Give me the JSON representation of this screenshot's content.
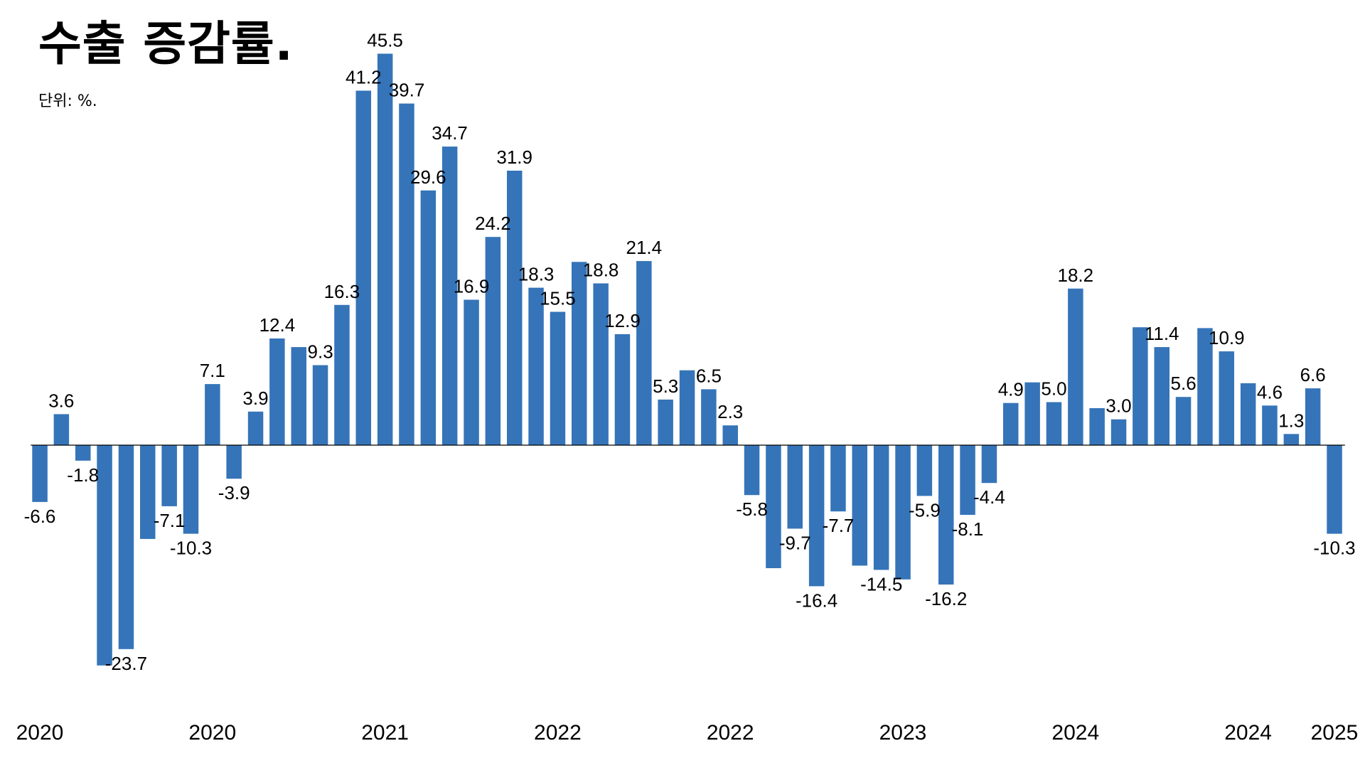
{
  "header": {
    "title": "수출 증감률.",
    "subtitle": "단위: %."
  },
  "chart_data": {
    "type": "bar",
    "title": "수출 증감률.",
    "unit": "단위: %.",
    "color": "#3574b8",
    "values": [
      -6.6,
      3.6,
      -1.8,
      -25.6,
      -23.7,
      -10.9,
      -7.1,
      -10.3,
      7.1,
      -3.9,
      3.9,
      12.4,
      11.4,
      9.3,
      16.3,
      41.2,
      45.5,
      39.7,
      29.6,
      34.7,
      16.9,
      24.2,
      31.9,
      18.3,
      15.5,
      21.3,
      18.8,
      12.9,
      21.4,
      5.3,
      8.7,
      6.5,
      2.3,
      -5.8,
      -14.3,
      -9.7,
      -16.4,
      -7.7,
      -14.0,
      -14.5,
      -15.6,
      -5.9,
      -16.2,
      -8.1,
      -4.4,
      4.9,
      7.3,
      5.0,
      18.2,
      4.3,
      3.0,
      13.7,
      11.4,
      5.6,
      13.6,
      10.9,
      7.2,
      4.6,
      1.3,
      6.6,
      -10.3
    ],
    "labels": [
      "-6.6",
      "3.6",
      "-1.8",
      "",
      "-23.7",
      "",
      "-7.1",
      "-10.3",
      "7.1",
      "-3.9",
      "3.9",
      "12.4",
      "",
      "9.3",
      "16.3",
      "41.2",
      "45.5",
      "39.7",
      "29.6",
      "34.7",
      "16.9",
      "24.2",
      "31.9",
      "18.3",
      "15.5",
      "",
      "18.8",
      "12.9",
      "21.4",
      "5.3",
      "",
      "6.5",
      "2.3",
      "-5.8",
      "",
      "-9.7",
      "-16.4",
      "-7.7",
      "",
      "-14.5",
      "",
      "-5.9",
      "-16.2",
      "-8.1",
      "-4.4",
      "4.9",
      "",
      "5.0",
      "18.2",
      "",
      "3.0",
      "",
      "11.4",
      "5.6",
      "",
      "10.9",
      "",
      "4.6",
      "1.3",
      "6.6",
      "-10.3"
    ],
    "x_ticks": [
      {
        "index": 0,
        "label": "2020"
      },
      {
        "index": 8,
        "label": "2020"
      },
      {
        "index": 16,
        "label": "2021"
      },
      {
        "index": 24,
        "label": "2022"
      },
      {
        "index": 32,
        "label": "2022"
      },
      {
        "index": 40,
        "label": "2023"
      },
      {
        "index": 48,
        "label": "2024"
      },
      {
        "index": 56,
        "label": "2024"
      },
      {
        "index": 60,
        "label": "2025"
      }
    ],
    "ylim": [
      -28,
      48
    ],
    "baseline": 0,
    "grid": false,
    "legend": "none"
  }
}
